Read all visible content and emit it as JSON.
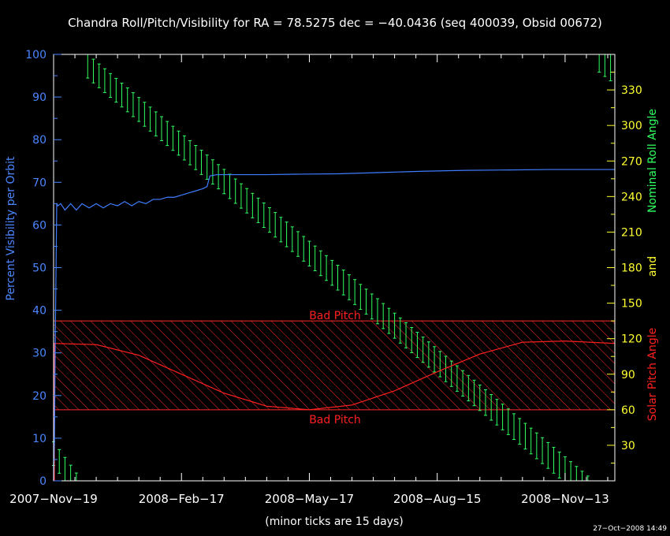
{
  "chart_data": {
    "type": "line",
    "title": "Chandra Roll/Pitch/Visibility for RA = 78.5275 dec = −40.0436 (seq 400039, Obsid 00672)",
    "xlabel": "(minor ticks are 15 days)",
    "x_tick_labels": [
      "2007−Nov−19",
      "2008−Feb−17",
      "2008−May−17",
      "2008−Aug−15",
      "2008−Nov−13"
    ],
    "x_tick_days": [
      0,
      90,
      180,
      270,
      360
    ],
    "xlim_days": [
      0,
      395
    ],
    "y_left": {
      "label": "Percent Visibility per Orbit",
      "lim": [
        0,
        100
      ],
      "ticks": [
        0,
        10,
        20,
        30,
        40,
        50,
        60,
        70,
        80,
        90,
        100
      ]
    },
    "y_right": {
      "label_roll": "Nominal Roll Angle",
      "label_and": "and",
      "label_pitch": "Solar Pitch Angle",
      "lim": [
        0,
        360
      ],
      "ticks": [
        30,
        60,
        90,
        120,
        150,
        180,
        210,
        240,
        270,
        300,
        330
      ]
    },
    "bad_pitch": {
      "label_top": "Bad Pitch",
      "label_bottom": "Bad Pitch",
      "range_deg": [
        60,
        135
      ]
    },
    "series": [
      {
        "name": "",
        "role": "visibility",
        "axis": "left",
        "x_days": [
          0,
          0.6,
          1.4,
          2.2,
          3,
          5,
          8,
          12,
          16,
          20,
          25,
          30,
          35,
          40,
          45,
          50,
          55,
          60,
          65,
          70,
          75,
          80,
          85,
          90,
          95,
          100,
          105,
          108,
          110,
          115,
          130,
          150,
          170,
          200,
          230,
          260,
          290,
          320,
          350,
          380,
          395
        ],
        "y": [
          0,
          10,
          40,
          65,
          64.5,
          65,
          63.5,
          65,
          63.5,
          65,
          64,
          65,
          64,
          65,
          64.5,
          65.5,
          64.5,
          65.5,
          65,
          66,
          66,
          66.5,
          66.5,
          67,
          67.5,
          68,
          68.5,
          69,
          71.5,
          71.8,
          71.8,
          71.8,
          71.9,
          72,
          72.3,
          72.6,
          72.8,
          72.9,
          73,
          73,
          73
        ]
      },
      {
        "name": "",
        "role": "solar pitch",
        "axis": "right",
        "color": "#ff2020",
        "x_days": [
          0,
          30,
          60,
          90,
          120,
          150,
          180,
          210,
          240,
          270,
          300,
          330,
          360,
          395
        ],
        "y": [
          116,
          115,
          106,
          90,
          74,
          63,
          60,
          64,
          76,
          92,
          107,
          117,
          118,
          116
        ]
      },
      {
        "name": "",
        "role": "nominal roll",
        "axis": "right",
        "color": "#30ff60",
        "x_days": [
          0,
          20,
          380,
          395
        ],
        "y": [
          33,
          0,
          0,
          345
        ],
        "band_bars": [
          {
            "x_days": [
              0,
              20
            ],
            "upper": [
              33,
              0
            ],
            "lower": [
              13,
              -20
            ]
          },
          {
            "x_days": [
              24,
              380
            ],
            "upper": [
              360,
              0
            ],
            "lower": [
              340,
              -22
            ]
          },
          {
            "x_days": [
              384,
              395
            ],
            "upper": [
              360,
              360
            ],
            "lower": [
              345,
              335
            ]
          }
        ]
      }
    ],
    "timestamp": "27−Oct−2008 14:49",
    "grid": false
  }
}
